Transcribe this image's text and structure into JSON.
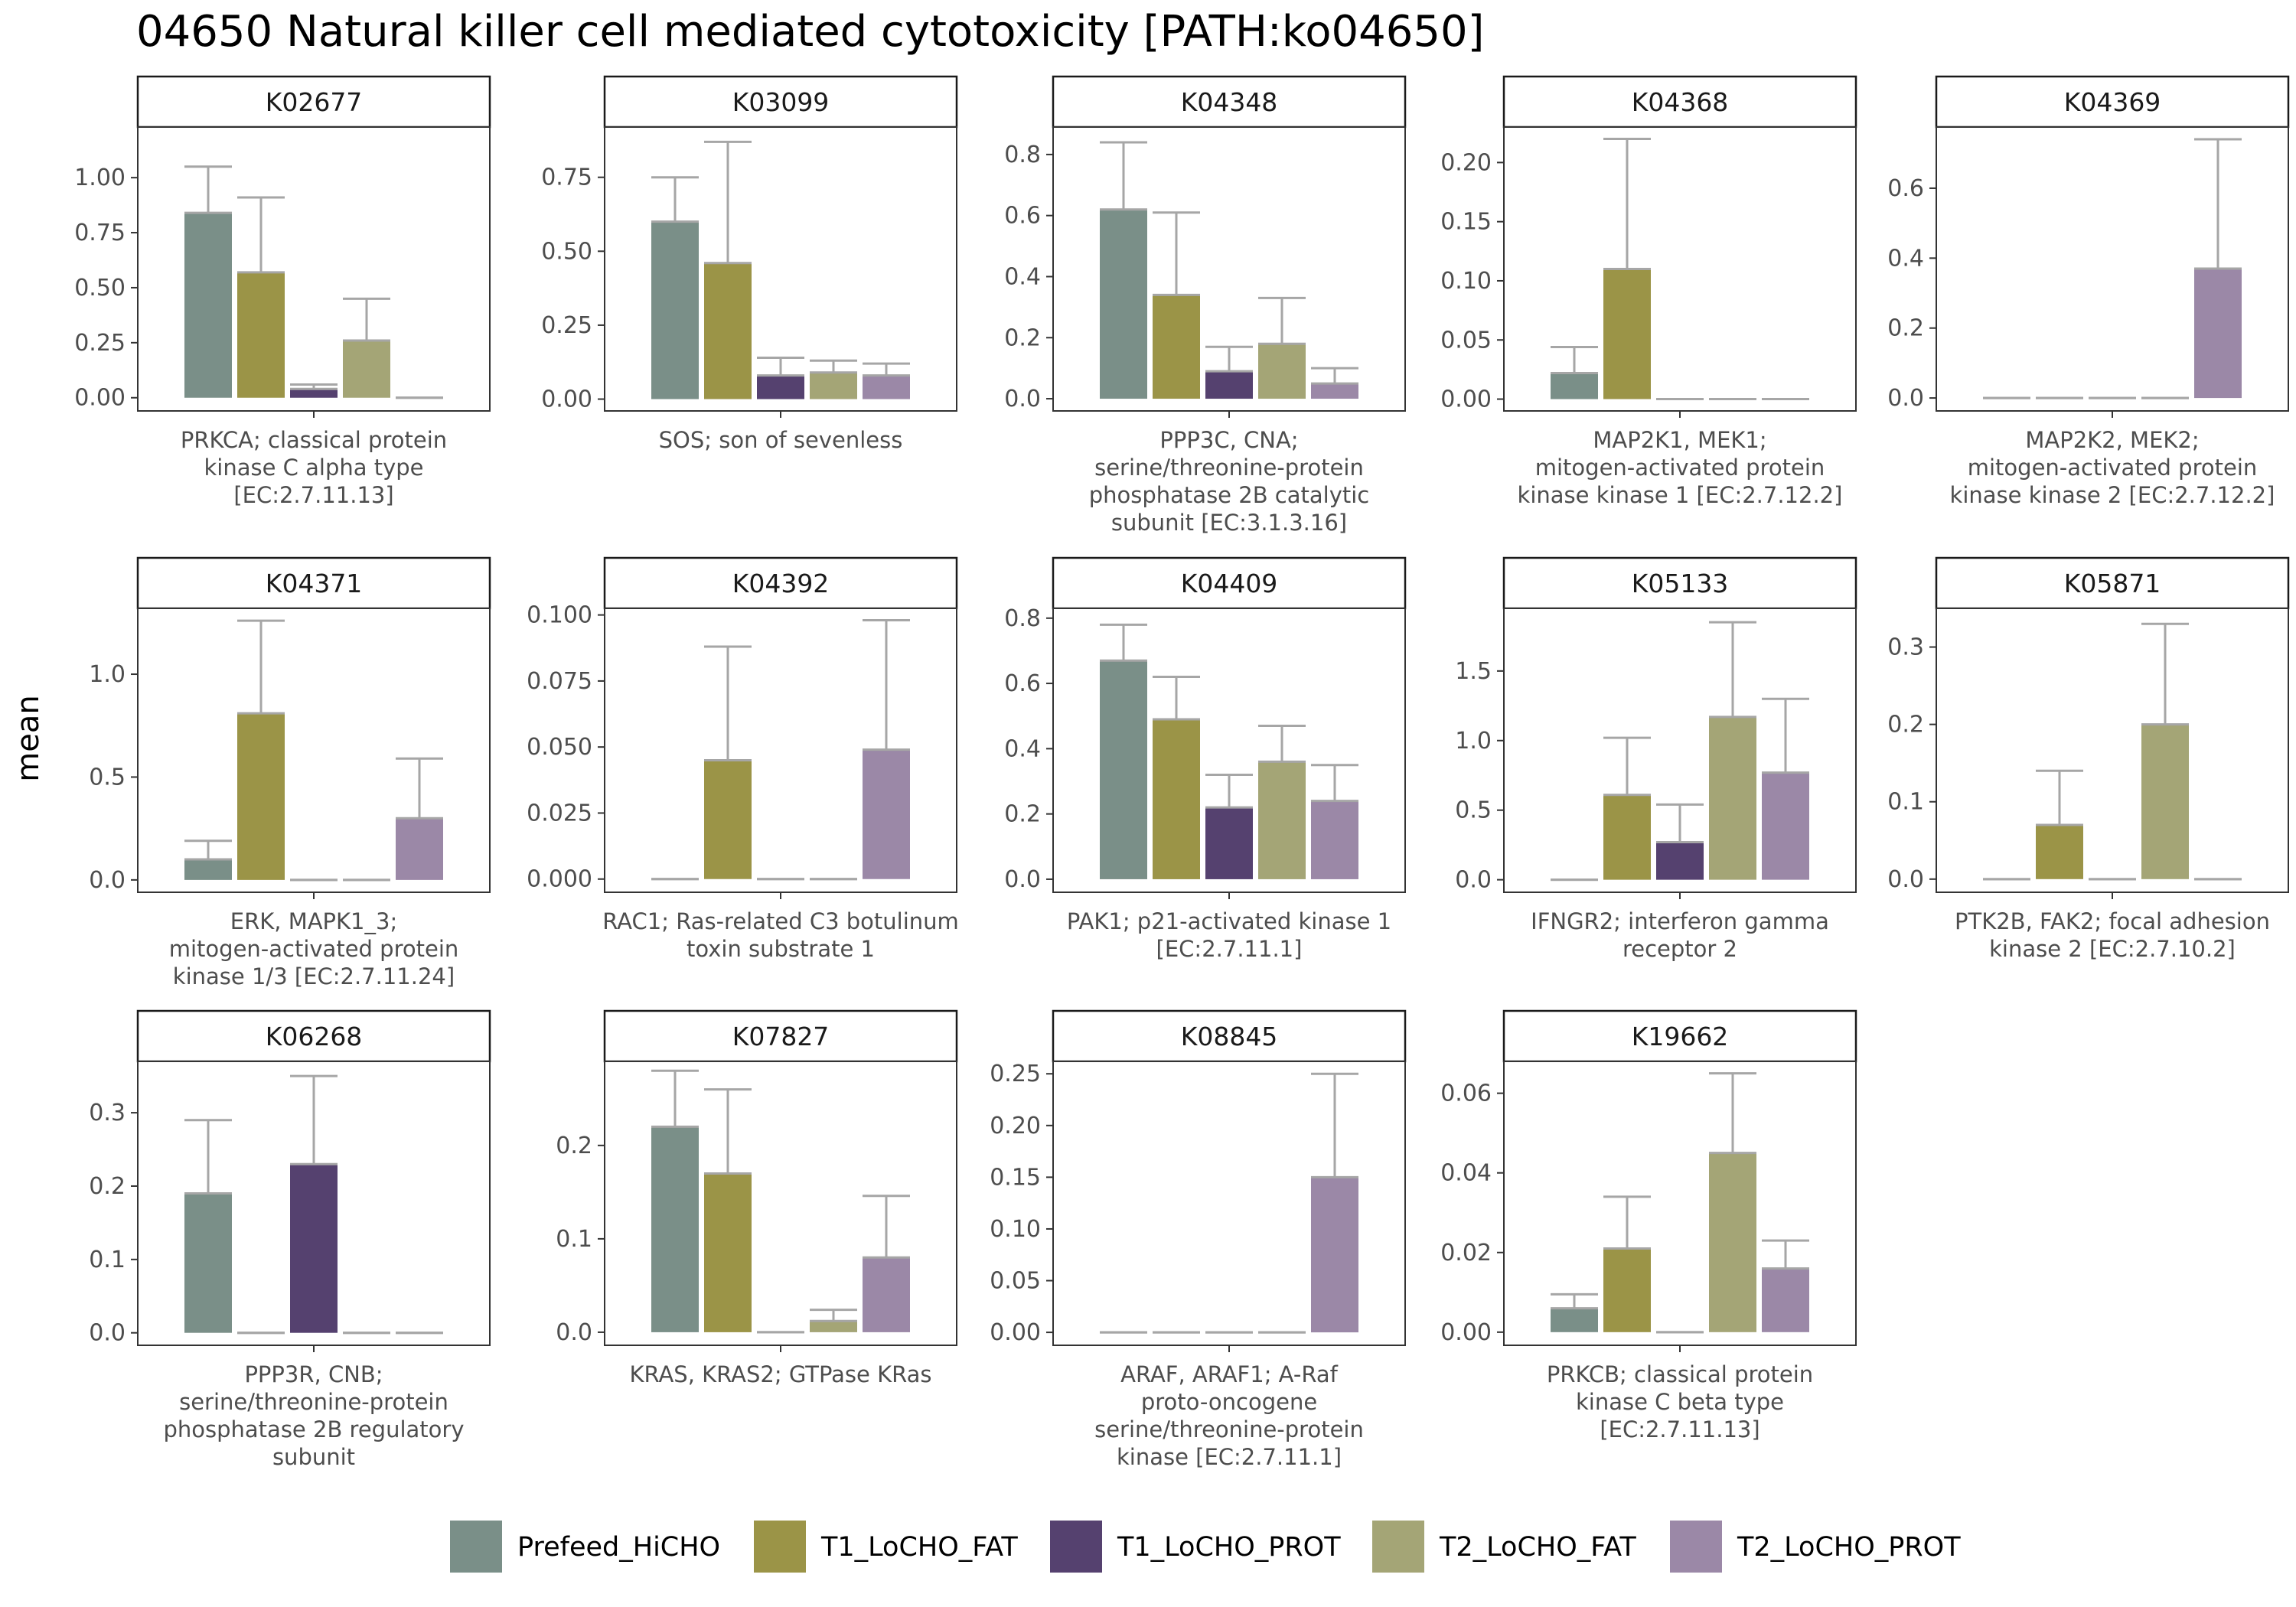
{
  "title": "04650 Natural killer cell mediated cytotoxicity [PATH:ko04650]",
  "y_axis_label": "mean",
  "legend": [
    {
      "name": "Prefeed_HiCHO",
      "color": "#7a8f88"
    },
    {
      "name": "T1_LoCHO_FAT",
      "color": "#9b9447"
    },
    {
      "name": "T1_LoCHO_PROT",
      "color": "#55416f"
    },
    {
      "name": "T2_LoCHO_FAT",
      "color": "#a4a576"
    },
    {
      "name": "T2_LoCHO_PROT",
      "color": "#9b88a7"
    }
  ],
  "chart_data": {
    "type": "bar",
    "facet": true,
    "series_names": [
      "Prefeed_HiCHO",
      "T1_LoCHO_FAT",
      "T1_LoCHO_PROT",
      "T2_LoCHO_FAT",
      "T2_LoCHO_PROT"
    ],
    "error_color": "#a6a6a6",
    "panels": [
      {
        "strip": "K02677",
        "caption": [
          "PRKCA; classical protein",
          "kinase C alpha type",
          "[EC:2.7.11.13]"
        ],
        "ylim": [
          -0.06,
          1.23
        ],
        "ticks": [
          0,
          0.25,
          0.5,
          0.75,
          1.0
        ],
        "tick_labels": [
          "0.00",
          "0.25",
          "0.50",
          "0.75",
          "1.00"
        ],
        "values": [
          0.84,
          0.57,
          0.04,
          0.26,
          0.0
        ],
        "errors": [
          1.05,
          0.91,
          0.06,
          0.45,
          0.0
        ]
      },
      {
        "strip": "K03099",
        "caption": [
          "SOS; son of sevenless"
        ],
        "ylim": [
          -0.04,
          0.92
        ],
        "ticks": [
          0,
          0.25,
          0.5,
          0.75
        ],
        "tick_labels": [
          "0.00",
          "0.25",
          "0.50",
          "0.75"
        ],
        "values": [
          0.6,
          0.46,
          0.08,
          0.09,
          0.08
        ],
        "errors": [
          0.75,
          0.87,
          0.14,
          0.13,
          0.12
        ]
      },
      {
        "strip": "K04348",
        "caption": [
          "PPP3C, CNA;",
          "serine/threonine-protein",
          "phosphatase 2B catalytic",
          "subunit [EC:3.1.3.16]"
        ],
        "ylim": [
          -0.04,
          0.89
        ],
        "ticks": [
          0,
          0.2,
          0.4,
          0.6,
          0.8
        ],
        "tick_labels": [
          "0.0",
          "0.2",
          "0.4",
          "0.6",
          "0.8"
        ],
        "values": [
          0.62,
          0.34,
          0.09,
          0.18,
          0.05
        ],
        "errors": [
          0.84,
          0.61,
          0.17,
          0.33,
          0.1
        ]
      },
      {
        "strip": "K04368",
        "caption": [
          "MAP2K1, MEK1;",
          "mitogen-activated protein",
          "kinase kinase 1 [EC:2.7.12.2]"
        ],
        "ylim": [
          -0.01,
          0.23
        ],
        "ticks": [
          0,
          0.05,
          0.1,
          0.15,
          0.2
        ],
        "tick_labels": [
          "0.00",
          "0.05",
          "0.10",
          "0.15",
          "0.20"
        ],
        "values": [
          0.022,
          0.11,
          0.0,
          0.0,
          0.0
        ],
        "errors": [
          0.044,
          0.22,
          0.0,
          0.0,
          0.0
        ]
      },
      {
        "strip": "K04369",
        "caption": [
          "MAP2K2, MEK2;",
          "mitogen-activated protein",
          "kinase kinase 2 [EC:2.7.12.2]"
        ],
        "ylim": [
          -0.037,
          0.775
        ],
        "ticks": [
          0,
          0.2,
          0.4,
          0.6
        ],
        "tick_labels": [
          "0.0",
          "0.2",
          "0.4",
          "0.6"
        ],
        "values": [
          0.0,
          0.0,
          0.0,
          0.0,
          0.37
        ],
        "errors": [
          0.0,
          0.0,
          0.0,
          0.0,
          0.74
        ]
      },
      {
        "strip": "K04371",
        "caption": [
          "ERK, MAPK1_3;",
          "mitogen-activated protein",
          "kinase 1/3 [EC:2.7.11.24]"
        ],
        "ylim": [
          -0.06,
          1.32
        ],
        "ticks": [
          0,
          0.5,
          1.0
        ],
        "tick_labels": [
          "0.0",
          "0.5",
          "1.0"
        ],
        "values": [
          0.1,
          0.81,
          0.0,
          0.0,
          0.3
        ],
        "errors": [
          0.19,
          1.26,
          0.0,
          0.0,
          0.59
        ]
      },
      {
        "strip": "K04392",
        "caption": [
          "RAC1; Ras-related C3 botulinum",
          "toxin substrate 1"
        ],
        "ylim": [
          -0.005,
          0.1025
        ],
        "ticks": [
          0,
          0.025,
          0.05,
          0.075,
          0.1
        ],
        "tick_labels": [
          "0.000",
          "0.025",
          "0.050",
          "0.075",
          "0.100"
        ],
        "values": [
          0.0,
          0.045,
          0.0,
          0.0,
          0.049
        ],
        "errors": [
          0.0,
          0.088,
          0.0,
          0.0,
          0.098
        ]
      },
      {
        "strip": "K04409",
        "caption": [
          "PAK1; p21-activated kinase 1",
          "[EC:2.7.11.1]"
        ],
        "ylim": [
          -0.04,
          0.83
        ],
        "ticks": [
          0,
          0.2,
          0.4,
          0.6,
          0.8
        ],
        "tick_labels": [
          "0.0",
          "0.2",
          "0.4",
          "0.6",
          "0.8"
        ],
        "values": [
          0.67,
          0.49,
          0.22,
          0.36,
          0.24
        ],
        "errors": [
          0.78,
          0.62,
          0.32,
          0.47,
          0.35
        ]
      },
      {
        "strip": "K05133",
        "caption": [
          "IFNGR2; interferon gamma",
          "receptor 2"
        ],
        "ylim": [
          -0.09,
          1.95
        ],
        "ticks": [
          0,
          0.5,
          1.0,
          1.5
        ],
        "tick_labels": [
          "0.0",
          "0.5",
          "1.0",
          "1.5"
        ],
        "values": [
          0.0,
          0.61,
          0.27,
          1.17,
          0.77
        ],
        "errors": [
          0.0,
          1.02,
          0.54,
          1.85,
          1.3
        ]
      },
      {
        "strip": "K05871",
        "caption": [
          "PTK2B, FAK2; focal adhesion",
          "kinase 2 [EC:2.7.10.2]"
        ],
        "ylim": [
          -0.017,
          0.35
        ],
        "ticks": [
          0,
          0.1,
          0.2,
          0.3
        ],
        "tick_labels": [
          "0.0",
          "0.1",
          "0.2",
          "0.3"
        ],
        "values": [
          0.0,
          0.07,
          0.0,
          0.2,
          0.0
        ],
        "errors": [
          0.0,
          0.14,
          0.0,
          0.33,
          0.0
        ]
      },
      {
        "strip": "K06268",
        "caption": [
          "PPP3R, CNB;",
          "serine/threonine-protein",
          "phosphatase 2B regulatory",
          "subunit"
        ],
        "ylim": [
          -0.017,
          0.37
        ],
        "ticks": [
          0,
          0.1,
          0.2,
          0.3
        ],
        "tick_labels": [
          "0.0",
          "0.1",
          "0.2",
          "0.3"
        ],
        "values": [
          0.19,
          0.0,
          0.23,
          0.0,
          0.0
        ],
        "errors": [
          0.29,
          0.0,
          0.35,
          0.0,
          0.0
        ]
      },
      {
        "strip": "K07827",
        "caption": [
          "KRAS, KRAS2; GTPase KRas"
        ],
        "ylim": [
          -0.014,
          0.29
        ],
        "ticks": [
          0,
          0.1,
          0.2
        ],
        "tick_labels": [
          "0.0",
          "0.1",
          "0.2"
        ],
        "values": [
          0.22,
          0.17,
          0.0,
          0.012,
          0.08
        ],
        "errors": [
          0.28,
          0.26,
          0.0,
          0.024,
          0.146
        ]
      },
      {
        "strip": "K08845",
        "caption": [
          "ARAF, ARAF1; A-Raf",
          "proto-oncogene",
          "serine/threonine-protein",
          "kinase [EC:2.7.11.1]"
        ],
        "ylim": [
          -0.0125,
          0.262
        ],
        "ticks": [
          0,
          0.05,
          0.1,
          0.15,
          0.2,
          0.25
        ],
        "tick_labels": [
          "0.00",
          "0.05",
          "0.10",
          "0.15",
          "0.20",
          "0.25"
        ],
        "values": [
          0.0,
          0.0,
          0.0,
          0.0,
          0.15
        ],
        "errors": [
          0.0,
          0.0,
          0.0,
          0.0,
          0.25
        ]
      },
      {
        "strip": "K19662",
        "caption": [
          "PRKCB; classical protein",
          "kinase C beta type",
          "[EC:2.7.11.13]"
        ],
        "ylim": [
          -0.0033,
          0.068
        ],
        "ticks": [
          0,
          0.02,
          0.04,
          0.06
        ],
        "tick_labels": [
          "0.00",
          "0.02",
          "0.04",
          "0.06"
        ],
        "values": [
          0.006,
          0.021,
          0.0,
          0.045,
          0.016
        ],
        "errors": [
          0.0095,
          0.034,
          0.0,
          0.065,
          0.023
        ]
      }
    ]
  }
}
